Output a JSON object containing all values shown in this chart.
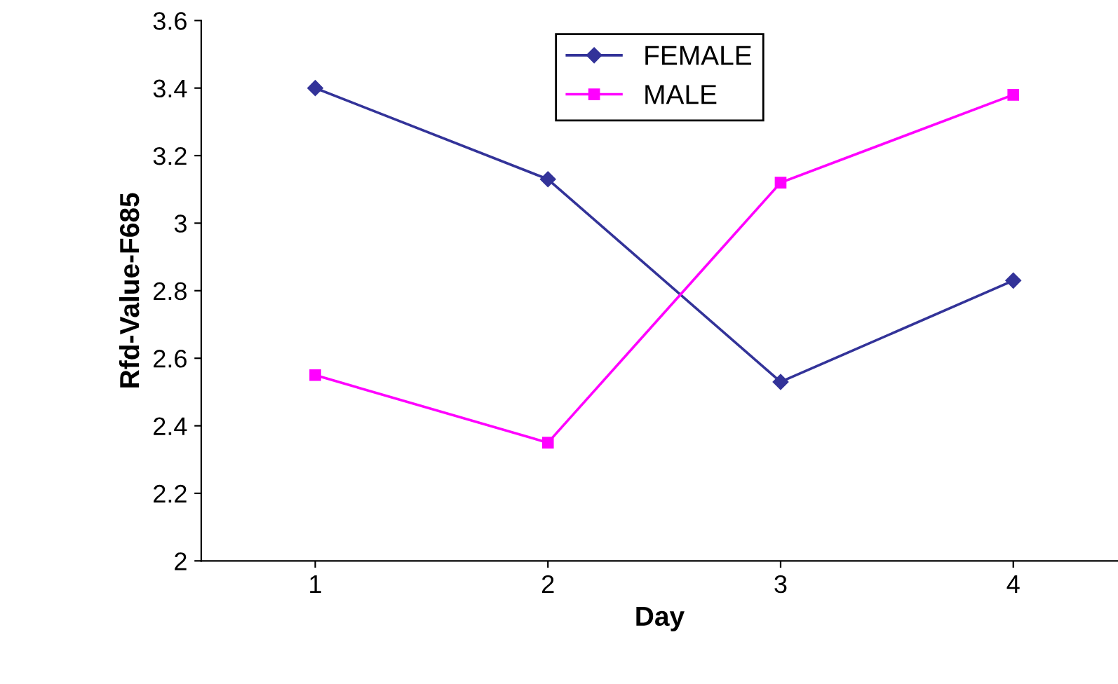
{
  "chart_data": {
    "type": "line",
    "xlabel": "Day",
    "ylabel": "Rfd-Value-F685",
    "categories": [
      "1",
      "2",
      "3",
      "4"
    ],
    "series": [
      {
        "name": "FEMALE",
        "color": "#333399",
        "marker": "diamond",
        "values": [
          3.4,
          3.13,
          2.53,
          2.83
        ]
      },
      {
        "name": "MALE",
        "color": "#ff00ff",
        "marker": "square",
        "values": [
          2.55,
          2.35,
          3.12,
          3.38
        ]
      }
    ],
    "ylim": [
      2,
      3.6
    ],
    "yticks": [
      2,
      2.2,
      2.4,
      2.6,
      2.8,
      3,
      3.2,
      3.4,
      3.6
    ],
    "grid": false,
    "legend": "top",
    "line_style": "solid"
  }
}
